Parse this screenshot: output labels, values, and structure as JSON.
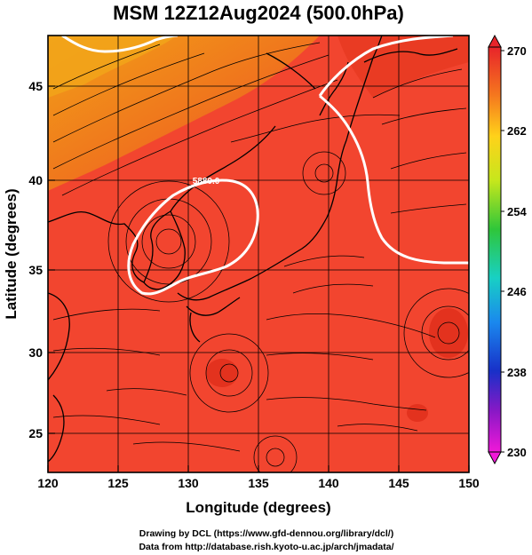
{
  "title": "MSM 12Z12Aug2024 (500.0hPa)",
  "map": {
    "xlabel": "Longitude (degrees)",
    "ylabel": "Latitude  (degrees)",
    "xticks": [
      "120",
      "125",
      "130",
      "135",
      "140",
      "145",
      "150"
    ],
    "yticks": [
      "45",
      "40",
      "35",
      "30",
      "25"
    ],
    "contour_label": "5880.0",
    "colors": {
      "field_main": "#f2452f",
      "field_warm": "#e63a22",
      "field_orange": "#f47a1c",
      "contour": "#ffffff"
    }
  },
  "colorbar": {
    "ticks": [
      "270",
      "262",
      "254",
      "246",
      "238",
      "230"
    ]
  },
  "credits": {
    "line1": "Drawing by DCL (https://www.gfd-dennou.org/library/dcl/)",
    "line2": "Data from http://database.rish.kyoto-u.ac.jp/arch/jmadata/"
  }
}
